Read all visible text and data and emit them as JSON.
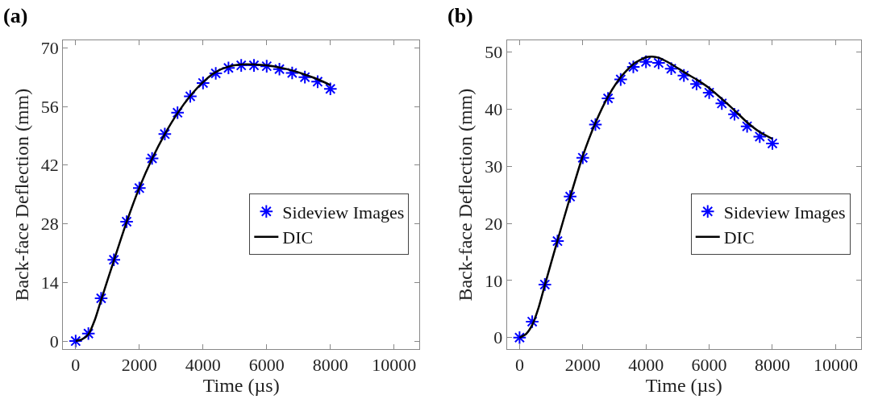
{
  "chart_data": [
    {
      "type": "line",
      "title": "(a)",
      "xlabel": "Time (µs)",
      "ylabel": "Back-face Deflection (mm)",
      "xlim": [
        -400,
        10800
      ],
      "ylim": [
        -1.9,
        71.7
      ],
      "xticks": [
        0,
        2000,
        4000,
        6000,
        8000,
        10000
      ],
      "yticks": [
        0,
        14,
        28,
        42,
        56,
        70
      ],
      "legend": "right",
      "series": [
        {
          "name": "Sideview Images",
          "type": "scatter",
          "marker": "cross",
          "color": "#0000ff",
          "x": [
            0,
            400,
            800,
            1200,
            1600,
            2000,
            2400,
            2800,
            3200,
            3600,
            4000,
            4400,
            4800,
            5200,
            5600,
            6000,
            6400,
            6800,
            7200,
            7600,
            8000
          ],
          "values": [
            0,
            1.8,
            10.2,
            19.4,
            28.5,
            36.5,
            43.6,
            49.4,
            54.5,
            58.4,
            61.6,
            63.9,
            65.2,
            65.8,
            65.8,
            65.6,
            64.9,
            64.0,
            63.0,
            61.9,
            60.2
          ]
        },
        {
          "name": "DIC",
          "marker": "none",
          "color": "#000000",
          "x": [
            0,
            200,
            400,
            600,
            800,
            1200,
            1600,
            2000,
            2400,
            2800,
            3200,
            3600,
            4000,
            4400,
            4800,
            5200,
            5600,
            6000,
            6400,
            6800,
            7200,
            7600,
            8000
          ],
          "values": [
            0,
            0.4,
            1.6,
            5.0,
            9.8,
            19.2,
            28.4,
            36.6,
            43.5,
            49.4,
            54.4,
            58.5,
            61.8,
            64.2,
            65.5,
            66.0,
            66.0,
            65.8,
            65.3,
            64.6,
            63.6,
            62.5,
            61.1
          ]
        }
      ]
    },
    {
      "type": "line",
      "title": "(b)",
      "xlabel": "Time (µs)",
      "ylabel": "Back-face Deflection (mm)",
      "xlim": [
        -400,
        10800
      ],
      "ylim": [
        -2,
        52
      ],
      "xticks": [
        0,
        2000,
        4000,
        6000,
        8000,
        10000
      ],
      "yticks": [
        0,
        10,
        20,
        30,
        40,
        50
      ],
      "legend": "right",
      "series": [
        {
          "name": "Sideview Images",
          "type": "scatter",
          "marker": "cross",
          "color": "#0000ff",
          "x": [
            0,
            400,
            800,
            1200,
            1600,
            2000,
            2400,
            2800,
            3200,
            3600,
            4000,
            4400,
            4800,
            5200,
            5600,
            6000,
            6400,
            6800,
            7200,
            7600,
            8000
          ],
          "values": [
            0,
            2.8,
            9.3,
            16.9,
            24.7,
            31.5,
            37.3,
            41.9,
            45.2,
            47.4,
            48.3,
            48.1,
            47.1,
            45.9,
            44.4,
            42.9,
            41.0,
            39.1,
            37.0,
            35.2,
            34.0
          ]
        },
        {
          "name": "DIC",
          "marker": "none",
          "color": "#000000",
          "x": [
            0,
            200,
            400,
            600,
            800,
            1200,
            1600,
            2000,
            2400,
            2800,
            3200,
            3600,
            4000,
            4200,
            4400,
            4800,
            5200,
            5600,
            6000,
            6400,
            6800,
            7200,
            7600,
            8000
          ],
          "values": [
            0,
            0.6,
            2.2,
            5.2,
            9.2,
            17.0,
            24.6,
            31.8,
            37.6,
            42.2,
            45.6,
            47.9,
            49.1,
            49.2,
            49.0,
            47.9,
            46.5,
            45.2,
            43.7,
            41.8,
            39.8,
            37.7,
            36.0,
            34.8
          ]
        }
      ]
    }
  ]
}
